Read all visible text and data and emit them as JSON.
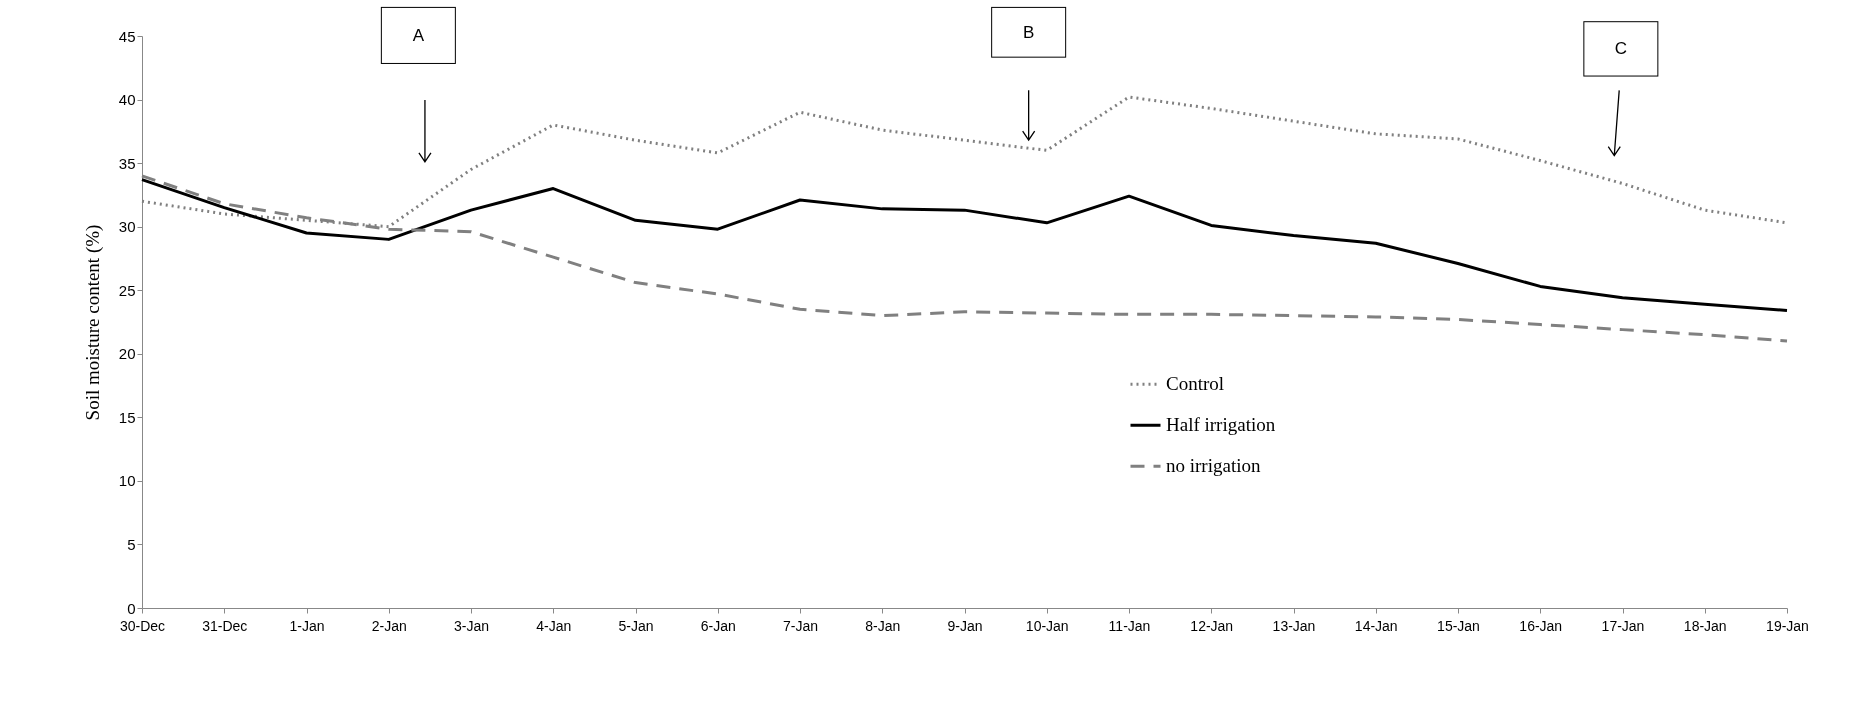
{
  "chart_data": {
    "type": "line",
    "ylabel": "Soil  moisture content  (%)",
    "categories": [
      "30-Dec",
      "31-Dec",
      "1-Jan",
      "2-Jan",
      "3-Jan",
      "4-Jan",
      "5-Jan",
      "6-Jan",
      "7-Jan",
      "8-Jan",
      "9-Jan",
      "10-Jan",
      "11-Jan",
      "12-Jan",
      "13-Jan",
      "14-Jan",
      "15-Jan",
      "16-Jan",
      "17-Jan",
      "18-Jan",
      "19-Jan"
    ],
    "series": [
      {
        "name": "Control",
        "color": "#808080",
        "line_style": "dotted",
        "values": [
          32,
          31,
          30.5,
          30,
          34.5,
          38,
          36.8,
          35.8,
          39,
          37.6,
          36.8,
          36,
          40.2,
          39.3,
          38.3,
          37.3,
          36.9,
          35.2,
          33.4,
          31.3,
          30.3
        ]
      },
      {
        "name": "Half irrigation",
        "color": "#000000",
        "line_style": "solid",
        "values": [
          33.7,
          31.5,
          29.5,
          29,
          31.3,
          33,
          30.5,
          29.8,
          32.1,
          31.4,
          31.3,
          30.3,
          32.4,
          30.1,
          29.3,
          28.7,
          27.1,
          25.3,
          24.4,
          23.9,
          23.4
        ]
      },
      {
        "name": "no irrigation",
        "color": "#808080",
        "line_style": "dashed",
        "values": [
          34,
          31.8,
          30.7,
          29.8,
          29.6,
          27.6,
          25.6,
          24.7,
          23.5,
          23,
          23.3,
          23.2,
          23.1,
          23.1,
          23,
          22.9,
          22.7,
          22.3,
          21.9,
          21.5,
          21
        ]
      }
    ],
    "ylim": [
      0,
      45
    ],
    "yticks": [
      0,
      5,
      10,
      15,
      20,
      25,
      30,
      35,
      40,
      45
    ],
    "grid": false,
    "legend": "bottom",
    "marker": "none",
    "annotations": [
      "A",
      "B",
      "C"
    ]
  }
}
